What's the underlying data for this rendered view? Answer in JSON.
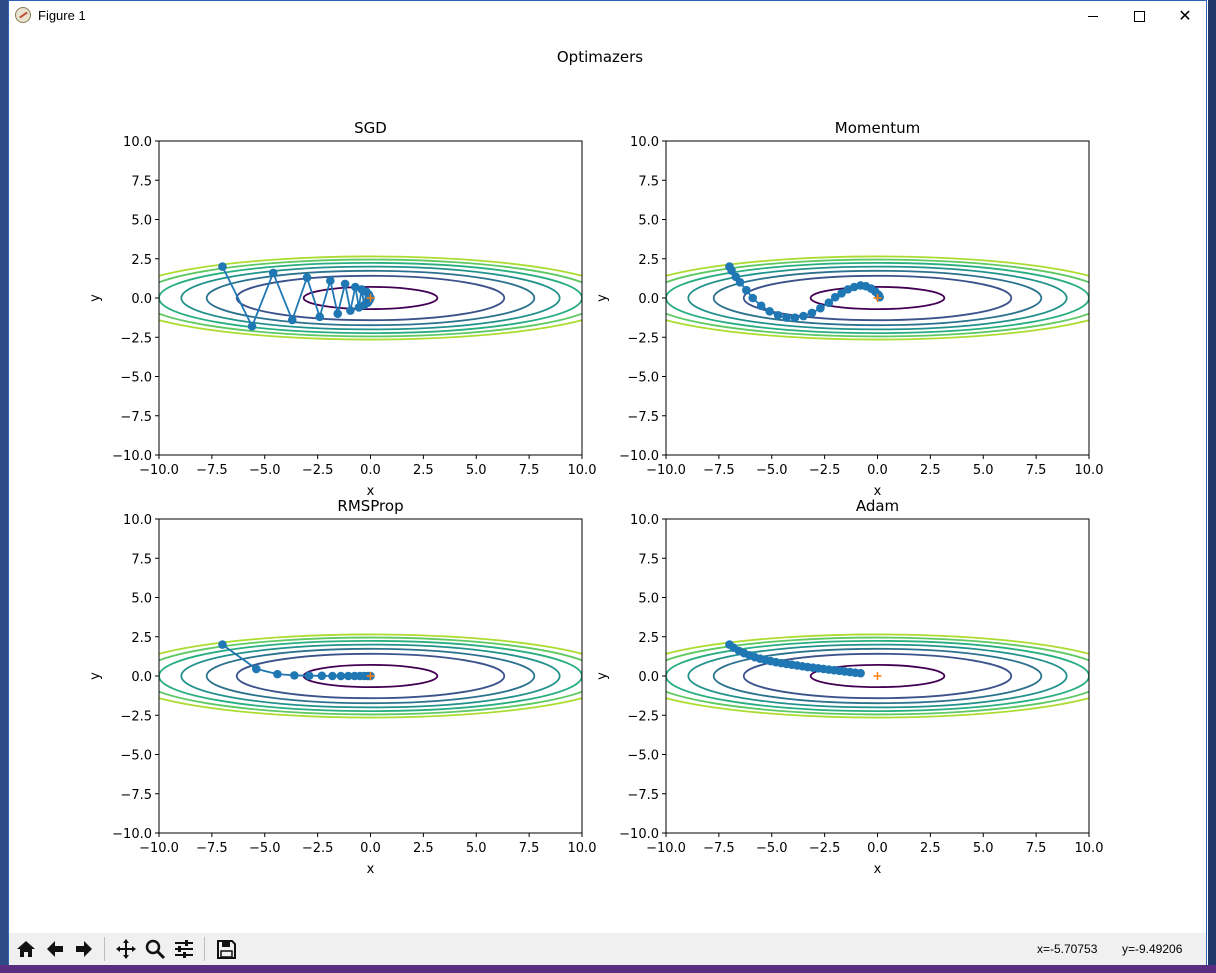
{
  "window": {
    "title": "Figure 1",
    "controls": {
      "minimize": "minimize",
      "maximize": "maximize",
      "close": "close"
    }
  },
  "toolbar": {
    "buttons": [
      "home-icon",
      "back-arrow-icon",
      "forward-arrow-icon",
      "pan-icon",
      "zoom-icon",
      "configure-subplots-icon",
      "save-icon"
    ],
    "coords": {
      "x": "x=-5.70753",
      "y": "y=-9.49206"
    }
  },
  "colors": {
    "path": "#1f77b4",
    "minimum_marker": "#ff7f0e",
    "contour_levels": [
      "#440154",
      "#3b528b",
      "#2c728e",
      "#21918c",
      "#28ae80",
      "#5ec962",
      "#addc30"
    ]
  },
  "chart_data": [
    {
      "type": "line",
      "title": "SGD",
      "xlabel": "x",
      "ylabel": "y",
      "xlim": [
        -10,
        10
      ],
      "ylim": [
        -10,
        10
      ],
      "xticks": [
        "−10.0",
        "−7.5",
        "−5.0",
        "−2.5",
        "0.0",
        "2.5",
        "5.0",
        "7.5",
        "10.0"
      ],
      "yticks": [
        "10.0",
        "7.5",
        "5.0",
        "2.5",
        "0.0",
        "−2.5",
        "−5.0",
        "−7.5",
        "−10.0"
      ],
      "series": [
        {
          "x": [
            -7.0,
            -5.6,
            -4.6,
            -3.7,
            -3.0,
            -2.4,
            -1.9,
            -1.55,
            -1.2,
            -0.95,
            -0.72,
            -0.55,
            -0.42,
            -0.3,
            -0.2,
            -0.13,
            -0.08,
            -0.05,
            0.0
          ],
          "y": [
            2.0,
            -1.8,
            1.6,
            -1.4,
            1.3,
            -1.2,
            1.1,
            -1.0,
            0.9,
            -0.8,
            0.7,
            -0.6,
            0.55,
            -0.45,
            0.4,
            -0.3,
            0.22,
            -0.15,
            0.0
          ]
        }
      ],
      "minimum": {
        "x": 0,
        "y": 0
      }
    },
    {
      "type": "line",
      "title": "Momentum",
      "xlabel": "x",
      "ylabel": "y",
      "xlim": [
        -10,
        10
      ],
      "ylim": [
        -10,
        10
      ],
      "xticks": [
        "−10.0",
        "−7.5",
        "−5.0",
        "−2.5",
        "0.0",
        "2.5",
        "5.0",
        "7.5",
        "10.0"
      ],
      "yticks": [
        "10.0",
        "7.5",
        "5.0",
        "2.5",
        "0.0",
        "−2.5",
        "−5.0",
        "−7.5",
        "−10.0"
      ],
      "series": [
        {
          "x": [
            -7.0,
            -6.9,
            -6.7,
            -6.5,
            -6.2,
            -5.9,
            -5.5,
            -5.1,
            -4.7,
            -4.3,
            -3.9,
            -3.5,
            -3.1,
            -2.7,
            -2.3,
            -2.0,
            -1.7,
            -1.4,
            -1.1,
            -0.8,
            -0.55,
            -0.3,
            -0.1,
            0.05,
            0.1
          ],
          "y": [
            2.0,
            1.75,
            1.35,
            1.0,
            0.5,
            0.0,
            -0.5,
            -0.85,
            -1.1,
            -1.25,
            -1.25,
            -1.15,
            -0.95,
            -0.65,
            -0.3,
            0.05,
            0.3,
            0.55,
            0.7,
            0.8,
            0.75,
            0.6,
            0.4,
            0.2,
            0.05
          ]
        }
      ],
      "minimum": {
        "x": 0,
        "y": 0
      }
    },
    {
      "type": "line",
      "title": "RMSProp",
      "xlabel": "x",
      "ylabel": "y",
      "xlim": [
        -10,
        10
      ],
      "ylim": [
        -10,
        10
      ],
      "xticks": [
        "−10.0",
        "−7.5",
        "−5.0",
        "−2.5",
        "0.0",
        "2.5",
        "5.0",
        "7.5",
        "10.0"
      ],
      "yticks": [
        "10.0",
        "7.5",
        "5.0",
        "2.5",
        "0.0",
        "−2.5",
        "−5.0",
        "−7.5",
        "−10.0"
      ],
      "series": [
        {
          "x": [
            -7.0,
            -5.4,
            -4.4,
            -3.6,
            -2.9,
            -2.3,
            -1.8,
            -1.4,
            -1.05,
            -0.75,
            -0.5,
            -0.3,
            -0.15,
            -0.05,
            0.0
          ],
          "y": [
            2.0,
            0.45,
            0.12,
            0.04,
            0.02,
            0.01,
            0.0,
            0.0,
            0.0,
            0.0,
            0.0,
            0.0,
            0.0,
            0.0,
            0.0
          ]
        }
      ],
      "minimum": {
        "x": 0,
        "y": 0
      }
    },
    {
      "type": "line",
      "title": "Adam",
      "xlabel": "x",
      "ylabel": "y",
      "xlim": [
        -10,
        10
      ],
      "ylim": [
        -10,
        10
      ],
      "xticks": [
        "−10.0",
        "−7.5",
        "−5.0",
        "−2.5",
        "0.0",
        "2.5",
        "5.0",
        "7.5",
        "10.0"
      ],
      "yticks": [
        "10.0",
        "7.5",
        "5.0",
        "2.5",
        "0.0",
        "−2.5",
        "−5.0",
        "−7.5",
        "−10.0"
      ],
      "series": [
        {
          "x": [
            -7.0,
            -6.8,
            -6.55,
            -6.3,
            -6.05,
            -5.8,
            -5.55,
            -5.3,
            -5.05,
            -4.8,
            -4.55,
            -4.3,
            -4.05,
            -3.8,
            -3.55,
            -3.3,
            -3.05,
            -2.8,
            -2.55,
            -2.3,
            -2.05,
            -1.8,
            -1.55,
            -1.3,
            -1.05,
            -0.8
          ],
          "y": [
            2.0,
            1.8,
            1.6,
            1.45,
            1.32,
            1.2,
            1.1,
            1.02,
            0.95,
            0.88,
            0.82,
            0.77,
            0.72,
            0.67,
            0.62,
            0.57,
            0.53,
            0.49,
            0.45,
            0.41,
            0.37,
            0.33,
            0.29,
            0.25,
            0.21,
            0.18
          ]
        }
      ],
      "minimum": {
        "x": 0,
        "y": 0
      }
    }
  ],
  "figure": {
    "suptitle": "Optimazers"
  }
}
